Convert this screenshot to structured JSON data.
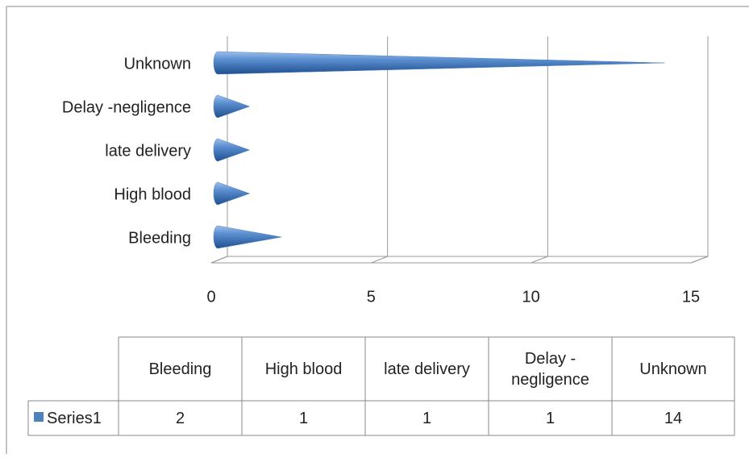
{
  "chart_data": {
    "type": "bar",
    "orientation": "horizontal",
    "shape": "cone",
    "categories": [
      "Bleeding",
      "High blood",
      "late delivery",
      "Delay -negligence",
      "Unknown"
    ],
    "series": [
      {
        "name": "Series1",
        "color": "#4f81bd",
        "values": [
          2,
          1,
          1,
          1,
          14
        ]
      }
    ],
    "xlim": [
      0,
      15
    ],
    "xticks": [
      0,
      5,
      10,
      15
    ],
    "grid": true,
    "data_table": true
  }
}
